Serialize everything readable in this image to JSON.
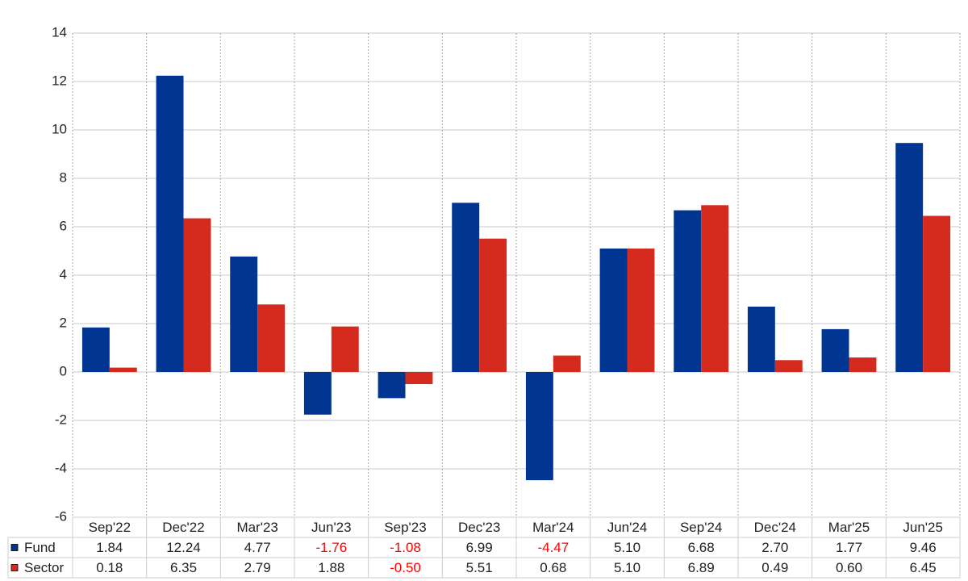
{
  "chart_data": {
    "type": "bar",
    "categories": [
      "Sep'22",
      "Dec'22",
      "Mar'23",
      "Jun'23",
      "Sep'23",
      "Dec'23",
      "Mar'24",
      "Jun'24",
      "Sep'24",
      "Dec'24",
      "Mar'25",
      "Jun'25"
    ],
    "series": [
      {
        "name": "Fund",
        "color": "#003591",
        "values": [
          1.84,
          12.24,
          4.77,
          -1.76,
          -1.08,
          6.99,
          -4.47,
          5.1,
          6.68,
          2.7,
          1.77,
          9.46
        ],
        "value_labels": [
          "1.84",
          "12.24",
          "4.77",
          "-1.76",
          "-1.08",
          "6.99",
          "-4.47",
          "5.10",
          "6.68",
          "2.70",
          "1.77",
          "9.46"
        ]
      },
      {
        "name": "Sector",
        "color": "#d52b1e",
        "values": [
          0.18,
          6.35,
          2.79,
          1.88,
          -0.5,
          5.51,
          0.68,
          5.1,
          6.89,
          0.49,
          0.6,
          6.45
        ],
        "value_labels": [
          "0.18",
          "6.35",
          "2.79",
          "1.88",
          "-0.50",
          "5.51",
          "0.68",
          "5.10",
          "6.89",
          "0.49",
          "0.60",
          "6.45"
        ]
      }
    ],
    "ylim": [
      -6,
      14
    ],
    "yticks": [
      -6,
      -4,
      -2,
      0,
      2,
      4,
      6,
      8,
      10,
      12,
      14
    ],
    "grid": true,
    "negative_label_color": "#ff0000"
  }
}
